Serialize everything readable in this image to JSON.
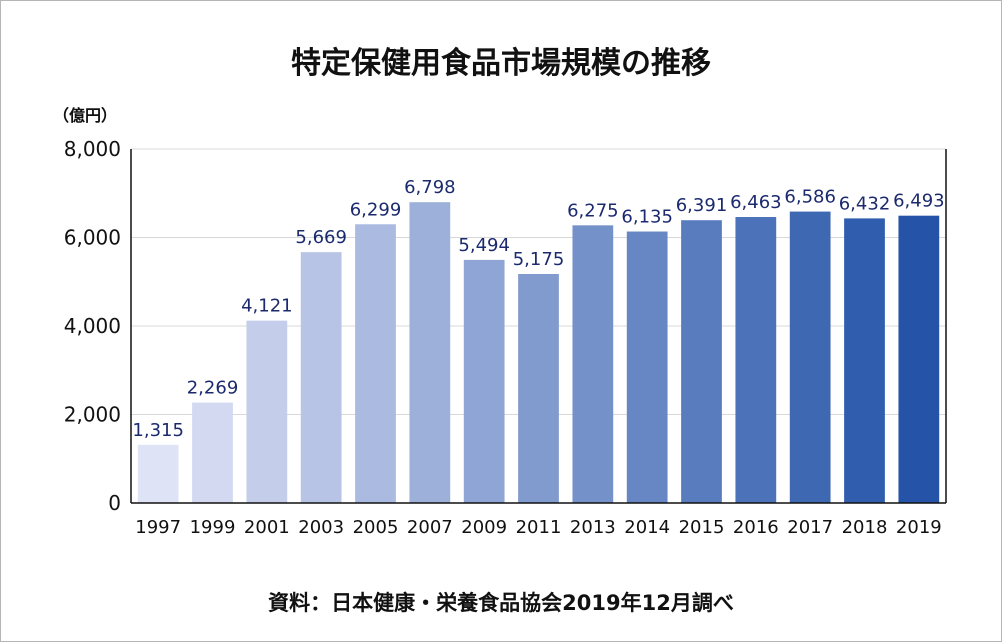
{
  "chart_data": {
    "type": "bar",
    "title": "特定保健用食品市場規模の推移",
    "unit_label": "（億円）",
    "source": "資料：日本健康・栄養食品協会2019年12月調べ",
    "categories": [
      "1997",
      "1999",
      "2001",
      "2003",
      "2005",
      "2007",
      "2009",
      "2011",
      "2013",
      "2014",
      "2015",
      "2016",
      "2017",
      "2018",
      "2019"
    ],
    "values": [
      1315,
      2269,
      4121,
      5669,
      6299,
      6798,
      5494,
      5175,
      6275,
      6135,
      6391,
      6463,
      6586,
      6432,
      6493
    ],
    "value_labels": [
      "1,315",
      "2,269",
      "4,121",
      "5,669",
      "6,299",
      "6,798",
      "5,494",
      "5,175",
      "6,275",
      "6,135",
      "6,391",
      "6,463",
      "6,586",
      "6,432",
      "6,493"
    ],
    "y_ticks": [
      0,
      2000,
      4000,
      6000,
      8000
    ],
    "y_tick_labels": [
      "0",
      "2,000",
      "4,000",
      "6,000",
      "8,000"
    ],
    "ylim": [
      0,
      8000
    ],
    "grid": true,
    "colors": {
      "bar_start": "#dfe3f6",
      "bar_end": "#2453a8",
      "value_label": "#1b2a6e",
      "grid": "#d8d8d8",
      "axis": "#111111"
    }
  }
}
